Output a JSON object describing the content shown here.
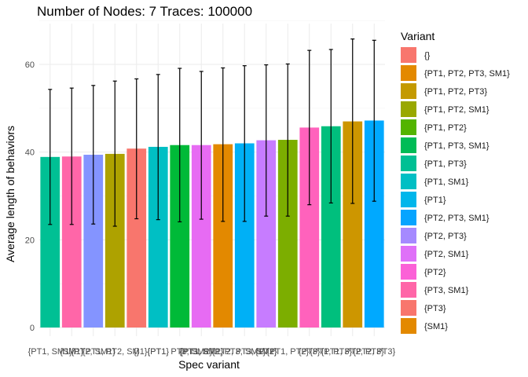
{
  "chart_data": {
    "type": "bar",
    "title": "Number of Nodes: 7 Traces: 100000",
    "xlabel": "Spec variant",
    "ylabel": "Average length of behaviors",
    "ylim": [
      0,
      70
    ],
    "yticks": [
      0,
      20,
      40,
      60
    ],
    "grid": true,
    "legend_title": "Variant",
    "legend_position": "right",
    "legend": [
      {
        "label": "{}",
        "color": "#F8766D"
      },
      {
        "label": "{PT1, PT2, PT3, SM1}",
        "color": "#E38900"
      },
      {
        "label": "{PT1, PT2, PT3}",
        "color": "#C49A00"
      },
      {
        "label": "{PT1, PT2, SM1}",
        "color": "#99A800"
      },
      {
        "label": "{PT1, PT2}",
        "color": "#53B400"
      },
      {
        "label": "{PT1, PT3, SM1}",
        "color": "#00BC56"
      },
      {
        "label": "{PT1, PT3}",
        "color": "#00C094"
      },
      {
        "label": "{PT1, SM1}",
        "color": "#00BFC4"
      },
      {
        "label": "{PT1}",
        "color": "#00B6EB"
      },
      {
        "label": "{PT2, PT3, SM1}",
        "color": "#06A4FF"
      },
      {
        "label": "{PT2, PT3}",
        "color": "#A58AFF"
      },
      {
        "label": "{PT2, SM1}",
        "color": "#DF70F8"
      },
      {
        "label": "{PT2}",
        "color": "#FB61D7"
      },
      {
        "label": "{PT3, SM1}",
        "color": "#FF66A8"
      },
      {
        "label": "{PT3}",
        "color": "#F8766D"
      },
      {
        "label": "{SM1}",
        "color": "#E38900"
      }
    ],
    "bars": [
      {
        "category": "{PT1, SM1}",
        "value": 38.9,
        "err_low": 23.5,
        "err_high": 54.3,
        "color": "#00C094"
      },
      {
        "category": "{SM1}",
        "value": 39.0,
        "err_low": 23.5,
        "err_high": 54.6,
        "color": "#FF66A8"
      },
      {
        "category": "{PT2, SM1}",
        "value": 39.4,
        "err_low": 23.6,
        "err_high": 55.2,
        "color": "#8494FF"
      },
      {
        "category": "{PT1, PT2, SM1}",
        "value": 39.6,
        "err_low": 23.1,
        "err_high": 56.2,
        "color": "#AEA200"
      },
      {
        "category": "{}",
        "value": 40.8,
        "err_low": 24.8,
        "err_high": 56.7,
        "color": "#F8766D"
      },
      {
        "category": "{PT1}",
        "value": 41.2,
        "err_low": 24.6,
        "err_high": 57.7,
        "color": "#00BFC4"
      },
      {
        "category": "{PT1, PT3, SM1}",
        "value": 41.6,
        "err_low": 24.1,
        "err_high": 59.1,
        "color": "#00BA38"
      },
      {
        "category": "{PT3, SM1}",
        "value": 41.6,
        "err_low": 24.7,
        "err_high": 58.4,
        "color": "#E76BF3"
      },
      {
        "category": "{PT1, PT2, PT3, SM1}",
        "value": 41.8,
        "err_low": 24.2,
        "err_high": 59.2,
        "color": "#E38900"
      },
      {
        "category": "{PT2, PT3, SM1}",
        "value": 42.0,
        "err_low": 24.2,
        "err_high": 59.7,
        "color": "#00B0F6"
      },
      {
        "category": "{PT2}",
        "value": 42.7,
        "err_low": 25.4,
        "err_high": 59.9,
        "color": "#C77CFF"
      },
      {
        "category": "{PT1, PT2}",
        "value": 42.8,
        "err_low": 25.4,
        "err_high": 60.1,
        "color": "#7CAE00"
      },
      {
        "category": "{PT3}",
        "value": 45.6,
        "err_low": 28.0,
        "err_high": 63.2,
        "color": "#FF62BC"
      },
      {
        "category": "{PT1, PT3}",
        "value": 45.9,
        "err_low": 28.4,
        "err_high": 63.4,
        "color": "#00BF7D"
      },
      {
        "category": "{PT1, PT2, PT3}",
        "value": 47.0,
        "err_low": 28.3,
        "err_high": 65.8,
        "color": "#CD9600"
      },
      {
        "category": "{PT2, PT3}",
        "value": 47.2,
        "err_low": 28.8,
        "err_high": 65.5,
        "color": "#00A9FF"
      }
    ]
  }
}
